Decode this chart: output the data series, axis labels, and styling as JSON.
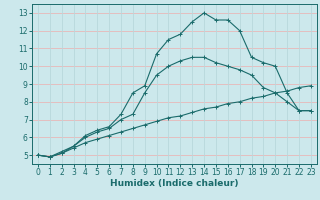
{
  "title": "",
  "xlabel": "Humidex (Indice chaleur)",
  "bg_color": "#cce8ec",
  "grid_color_h": "#e8b8b8",
  "grid_color_v": "#b8d8dc",
  "line_color": "#1a6b6b",
  "xlim": [
    -0.5,
    23.5
  ],
  "ylim": [
    4.5,
    13.5
  ],
  "xticks": [
    0,
    1,
    2,
    3,
    4,
    5,
    6,
    7,
    8,
    9,
    10,
    11,
    12,
    13,
    14,
    15,
    16,
    17,
    18,
    19,
    20,
    21,
    22,
    23
  ],
  "yticks": [
    5,
    6,
    7,
    8,
    9,
    10,
    11,
    12,
    13
  ],
  "series1_x": [
    0,
    1,
    2,
    3,
    4,
    5,
    6,
    7,
    8,
    9,
    10,
    11,
    12,
    13,
    14,
    15,
    16,
    17,
    18,
    19,
    20,
    21,
    22,
    23
  ],
  "series1_y": [
    5.0,
    4.9,
    5.1,
    5.4,
    5.7,
    5.9,
    6.1,
    6.3,
    6.5,
    6.7,
    6.9,
    7.1,
    7.2,
    7.4,
    7.6,
    7.7,
    7.9,
    8.0,
    8.2,
    8.3,
    8.5,
    8.6,
    8.8,
    8.9
  ],
  "series2_x": [
    0,
    1,
    2,
    3,
    4,
    5,
    6,
    7,
    8,
    9,
    10,
    11,
    12,
    13,
    14,
    15,
    16,
    17,
    18,
    19,
    20,
    21,
    22,
    23
  ],
  "series2_y": [
    5.0,
    4.9,
    5.1,
    5.5,
    6.0,
    6.3,
    6.5,
    7.0,
    7.3,
    8.5,
    9.5,
    10.0,
    10.3,
    10.5,
    10.5,
    10.2,
    10.0,
    9.8,
    9.5,
    8.8,
    8.5,
    8.0,
    7.5,
    7.5
  ],
  "series3_x": [
    0,
    1,
    2,
    3,
    4,
    5,
    6,
    7,
    8,
    9,
    10,
    11,
    12,
    13,
    14,
    15,
    16,
    17,
    18,
    19,
    20,
    21,
    22,
    23
  ],
  "series3_y": [
    5.0,
    4.9,
    5.2,
    5.5,
    6.1,
    6.4,
    6.6,
    7.3,
    8.5,
    8.9,
    10.7,
    11.5,
    11.8,
    12.5,
    13.0,
    12.6,
    12.6,
    12.0,
    10.5,
    10.2,
    10.0,
    8.5,
    7.5,
    7.5
  ]
}
